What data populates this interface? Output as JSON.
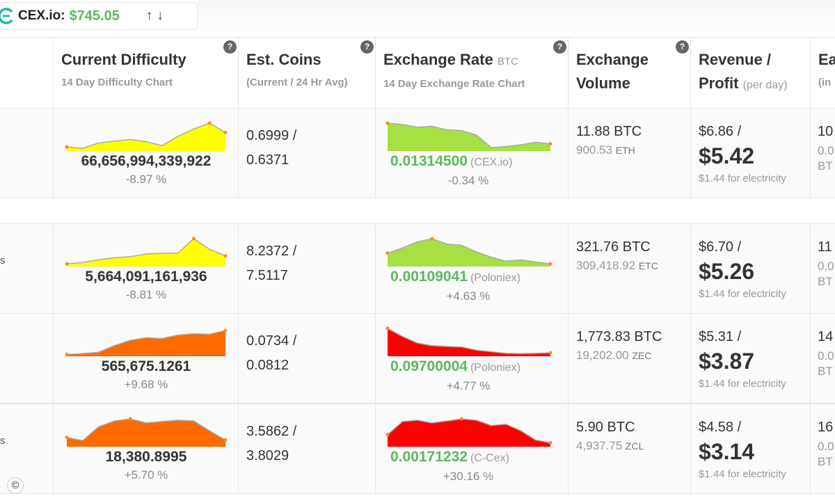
{
  "ticker": {
    "name": "CEX.io:",
    "price": "$745.05",
    "arrows": "↑↓"
  },
  "headers": {
    "difficulty": {
      "title": "Current Difficulty",
      "sub": "14 Day Difficulty Chart",
      "help": "?"
    },
    "coins": {
      "title": "Est. Coins",
      "sub": "(Current / 24 Hr Avg)",
      "help": "?"
    },
    "rate": {
      "title": "Exchange Rate",
      "unit": "BTC",
      "sub": "14 Day Exchange Rate Chart",
      "help": "?"
    },
    "volume": {
      "title1": "Exchange",
      "title2": "Volume",
      "help": "?"
    },
    "revenue": {
      "title1": "Revenue /",
      "title2": "Profit",
      "perday": "(per day)"
    },
    "earnings": {
      "title1": "Ea",
      "sub": "(in"
    }
  },
  "rows": [
    {
      "name_fragment": "",
      "difficulty": "66,656,994,339,922",
      "difficulty_change": "-8.97 %",
      "diff_spark": [
        0.1,
        0.05,
        0.25,
        0.32,
        0.38,
        0.3,
        0.15,
        0.5,
        0.78,
        1.0,
        0.65
      ],
      "diff_color": "#ffff00",
      "coins_current": "0.6999 /",
      "coins_avg": "0.6371",
      "rate": "0.01314500",
      "exchange": "(CEX.io)",
      "rate_change": "-0.34 %",
      "rate_spark": [
        1.0,
        0.95,
        0.85,
        0.88,
        0.75,
        0.72,
        0.55,
        0.08,
        0.12,
        0.18,
        0.28,
        0.22
      ],
      "rate_color": "#a6e043",
      "volume_btc": "11.88 BTC",
      "volume_alt": "900.53",
      "volume_alt_cur": "ETH",
      "revenue": "$6.86 /",
      "profit": "$5.42",
      "electricity": "$1.44 for electricity",
      "earn1": "10",
      "earn2a": "0.0",
      "earn2b": "BT"
    },
    {
      "name_fragment": "s",
      "difficulty": "5,664,091,161,936",
      "difficulty_change": "-8.81 %",
      "diff_spark": [
        0.05,
        0.1,
        0.2,
        0.28,
        0.32,
        0.42,
        0.45,
        0.45,
        1.0,
        0.6,
        0.35
      ],
      "diff_color": "#ffff00",
      "coins_current": "8.2372 /",
      "coins_avg": "7.5117",
      "rate": "0.00109041",
      "exchange": "(Poloniex)",
      "rate_change": "+4.63 %",
      "rate_spark": [
        0.45,
        0.65,
        0.88,
        1.0,
        0.8,
        0.75,
        0.5,
        0.3,
        0.15,
        0.2,
        0.12,
        0.05
      ],
      "rate_color": "#a6e043",
      "volume_btc": "321.76 BTC",
      "volume_alt": "309,418.92",
      "volume_alt_cur": "ETC",
      "revenue": "$6.70 /",
      "profit": "$5.26",
      "electricity": "$1.44 for electricity",
      "earn1": "11",
      "earn2a": "0.0",
      "earn2b": "BT"
    },
    {
      "name_fragment": "",
      "difficulty": "565,675.1261",
      "difficulty_change": "+9.68 %",
      "diff_spark": [
        0.02,
        0.05,
        0.1,
        0.35,
        0.55,
        0.65,
        0.62,
        0.75,
        0.8,
        0.78,
        0.92
      ],
      "diff_color": "#ff6a00",
      "coins_current": "0.0734 /",
      "coins_avg": "0.0812",
      "rate": "0.09700004",
      "exchange": "(Poloniex)",
      "rate_change": "+4.77 %",
      "rate_spark": [
        1.0,
        0.7,
        0.45,
        0.35,
        0.32,
        0.3,
        0.18,
        0.12,
        0.06,
        0.05,
        0.06,
        0.08
      ],
      "rate_color": "#ff0000",
      "volume_btc": "1,773.83 BTC",
      "volume_alt": "19,202.00",
      "volume_alt_cur": "ZEC",
      "revenue": "$5.31 /",
      "profit": "$3.87",
      "electricity": "$1.44 for electricity",
      "earn1": "14",
      "earn2a": "0.0",
      "earn2b": "BT"
    },
    {
      "name_fragment": "s",
      "difficulty": "18,380.8995",
      "difficulty_change": "+5.70 %",
      "diff_spark": [
        0.3,
        0.18,
        0.7,
        0.92,
        1.0,
        0.85,
        0.9,
        0.95,
        0.92,
        0.55,
        0.2
      ],
      "diff_color": "#ff6a00",
      "coins_current": "3.5862 /",
      "coins_avg": "3.8029",
      "rate": "0.00171232",
      "exchange": "(C-Cex)",
      "rate_change": "+30.16 %",
      "rate_spark": [
        0.4,
        0.9,
        0.95,
        0.85,
        0.92,
        1.0,
        0.95,
        0.75,
        0.8,
        0.55,
        0.2,
        0.1
      ],
      "rate_color": "#ff0000",
      "volume_btc": "5.90 BTC",
      "volume_alt": "4,937.75",
      "volume_alt_cur": "ZCL",
      "revenue": "$4.58 /",
      "profit": "$3.14",
      "electricity": "$1.44 for electricity",
      "earn1": "16",
      "earn2a": "0.0",
      "earn2b": "BT"
    }
  ],
  "copyright_glyph": "©"
}
